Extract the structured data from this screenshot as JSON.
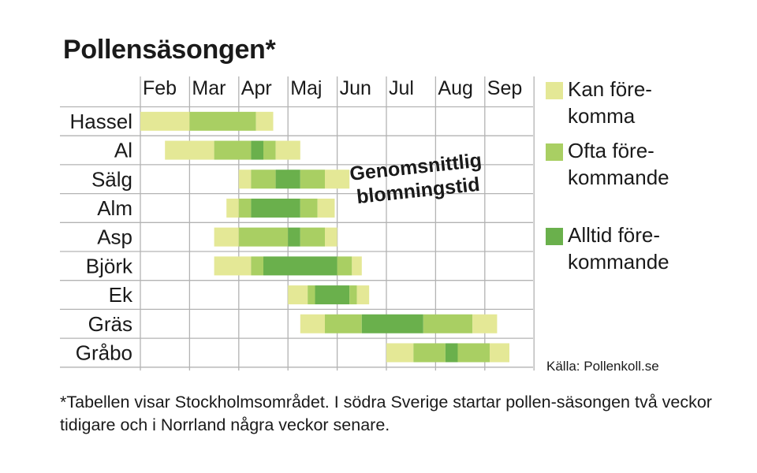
{
  "title": "Pollensäsongen*",
  "chart_data": {
    "type": "bar",
    "subtype": "gantt",
    "months": [
      "Feb",
      "Mar",
      "Apr",
      "Maj",
      "Jun",
      "Jul",
      "Aug",
      "Sep"
    ],
    "x_unit": "month (Feb start = 0)",
    "levels": [
      "Kan förekomma",
      "Ofta förekommande",
      "Alltid förekommande"
    ],
    "rows": [
      {
        "name": "Hassel",
        "segments": [
          [
            0.0,
            1.0,
            0
          ],
          [
            1.0,
            2.35,
            1
          ],
          [
            2.35,
            2.7,
            0
          ]
        ]
      },
      {
        "name": "Al",
        "segments": [
          [
            0.5,
            1.5,
            0
          ],
          [
            1.5,
            2.25,
            1
          ],
          [
            2.25,
            2.5,
            2
          ],
          [
            2.5,
            2.75,
            1
          ],
          [
            2.75,
            3.25,
            0
          ]
        ]
      },
      {
        "name": "Sälg",
        "segments": [
          [
            2.0,
            2.25,
            0
          ],
          [
            2.25,
            2.75,
            1
          ],
          [
            2.75,
            3.25,
            2
          ],
          [
            3.25,
            3.75,
            1
          ],
          [
            3.75,
            4.25,
            0
          ]
        ]
      },
      {
        "name": "Alm",
        "segments": [
          [
            1.75,
            2.0,
            0
          ],
          [
            2.0,
            2.25,
            1
          ],
          [
            2.25,
            3.25,
            2
          ],
          [
            3.25,
            3.6,
            1
          ],
          [
            3.6,
            3.95,
            0
          ]
        ]
      },
      {
        "name": "Asp",
        "segments": [
          [
            1.5,
            2.0,
            0
          ],
          [
            2.0,
            3.0,
            1
          ],
          [
            3.0,
            3.25,
            2
          ],
          [
            3.25,
            3.75,
            1
          ],
          [
            3.75,
            4.0,
            0
          ]
        ]
      },
      {
        "name": "Björk",
        "segments": [
          [
            1.5,
            2.25,
            0
          ],
          [
            2.25,
            2.5,
            1
          ],
          [
            2.5,
            4.0,
            2
          ],
          [
            4.0,
            4.3,
            1
          ],
          [
            4.3,
            4.5,
            0
          ]
        ]
      },
      {
        "name": "Ek",
        "segments": [
          [
            3.0,
            3.4,
            0
          ],
          [
            3.4,
            3.55,
            1
          ],
          [
            3.55,
            4.25,
            2
          ],
          [
            4.25,
            4.4,
            1
          ],
          [
            4.4,
            4.65,
            0
          ]
        ]
      },
      {
        "name": "Gräs",
        "segments": [
          [
            3.25,
            3.75,
            0
          ],
          [
            3.75,
            4.5,
            1
          ],
          [
            4.5,
            5.75,
            2
          ],
          [
            5.75,
            6.75,
            1
          ],
          [
            6.75,
            7.25,
            0
          ]
        ]
      },
      {
        "name": "Gråbo",
        "segments": [
          [
            5.0,
            5.55,
            0
          ],
          [
            5.55,
            6.2,
            1
          ],
          [
            6.2,
            6.45,
            2
          ],
          [
            6.45,
            7.1,
            1
          ],
          [
            7.1,
            7.5,
            0
          ]
        ]
      }
    ],
    "annotation": [
      "Genomsnittlig",
      "blomningstid"
    ]
  },
  "colors": {
    "level0": "#e4e896",
    "level1": "#a9cf63",
    "level2": "#6ab04c",
    "grid": "#b3b3b3"
  },
  "legend": [
    {
      "label": "Kan före-\nkomma"
    },
    {
      "label": "Ofta före-\nkommande"
    },
    {
      "label": "Alltid före-\nkommande"
    }
  ],
  "source": "Källa: Pollenkoll.se",
  "footnote": "*Tabellen visar Stockholmsområdet. I södra Sverige startar pollen-säsongen två veckor tidigare och i Norrland några veckor senare."
}
